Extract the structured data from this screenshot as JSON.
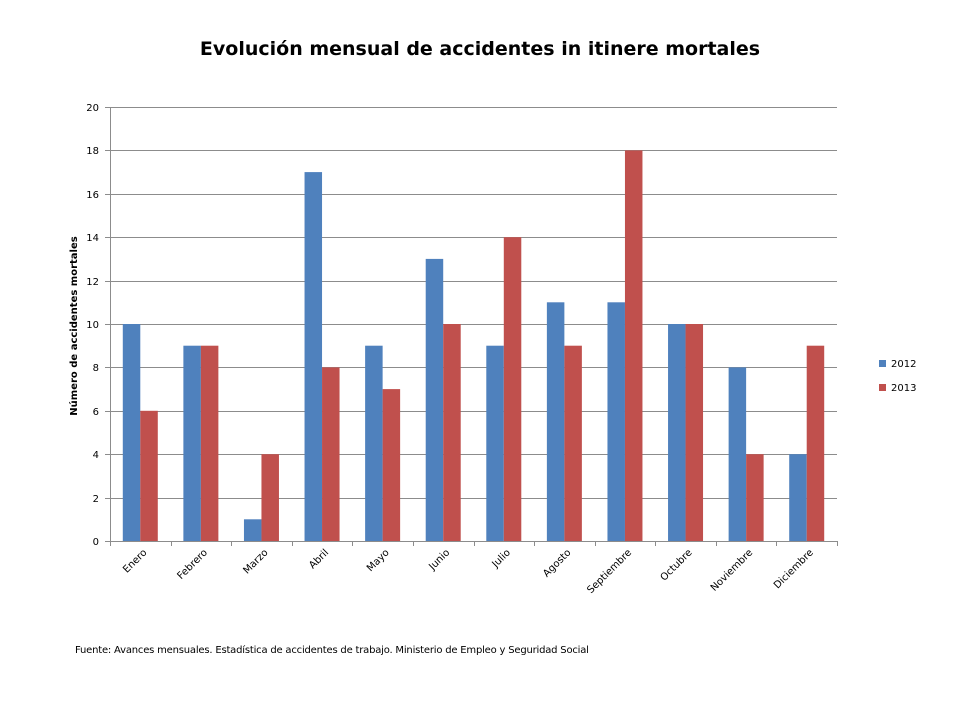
{
  "chart_data": {
    "type": "bar",
    "title": "Evolución mensual de accidentes in itinere mortales",
    "xlabel": "",
    "ylabel": "Número de accidentes mortales",
    "categories": [
      "Enero",
      "Febrero",
      "Marzo",
      "Abril",
      "Mayo",
      "Junio",
      "Julio",
      "Agosto",
      "Septiembre",
      "Octubre",
      "Noviembre",
      "Diciembre"
    ],
    "series": [
      {
        "name": "2012",
        "color": "#4f81bd",
        "values": [
          10,
          9,
          1,
          17,
          9,
          13,
          9,
          11,
          11,
          10,
          8,
          4
        ]
      },
      {
        "name": "2013",
        "color": "#c0504d",
        "values": [
          6,
          9,
          4,
          8,
          7,
          10,
          14,
          9,
          18,
          10,
          4,
          9
        ]
      }
    ],
    "ylim": [
      0,
      20
    ],
    "yticks": [
      0,
      2,
      4,
      6,
      8,
      10,
      12,
      14,
      16,
      18,
      20
    ],
    "grid": true,
    "legend_position": "right"
  },
  "source_note": "Fuente: Avances mensuales. Estadística de accidentes de trabajo. Ministerio de Empleo y Seguridad Social"
}
